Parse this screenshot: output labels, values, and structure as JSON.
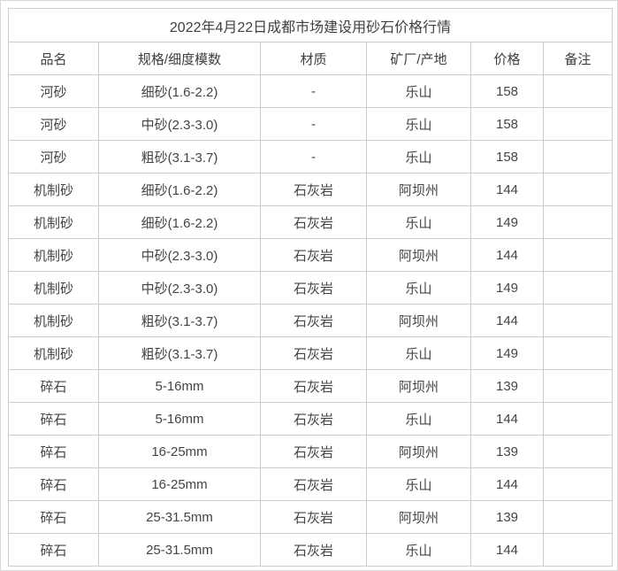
{
  "colors": {
    "text": "#404040",
    "border": "#cccccc",
    "background": "#ffffff"
  },
  "table": {
    "title": "2022年4月22日成都市场建设用砂石价格行情",
    "headers": [
      "品名",
      "规格/细度模数",
      "材质",
      "矿厂/产地",
      "价格",
      "备注"
    ],
    "rows": [
      [
        "河砂",
        "细砂(1.6-2.2)",
        "-",
        "乐山",
        "158",
        ""
      ],
      [
        "河砂",
        "中砂(2.3-3.0)",
        "-",
        "乐山",
        "158",
        ""
      ],
      [
        "河砂",
        "粗砂(3.1-3.7)",
        "-",
        "乐山",
        "158",
        ""
      ],
      [
        "机制砂",
        "细砂(1.6-2.2)",
        "石灰岩",
        "阿坝州",
        "144",
        ""
      ],
      [
        "机制砂",
        "细砂(1.6-2.2)",
        "石灰岩",
        "乐山",
        "149",
        ""
      ],
      [
        "机制砂",
        "中砂(2.3-3.0)",
        "石灰岩",
        "阿坝州",
        "144",
        ""
      ],
      [
        "机制砂",
        "中砂(2.3-3.0)",
        "石灰岩",
        "乐山",
        "149",
        ""
      ],
      [
        "机制砂",
        "粗砂(3.1-3.7)",
        "石灰岩",
        "阿坝州",
        "144",
        ""
      ],
      [
        "机制砂",
        "粗砂(3.1-3.7)",
        "石灰岩",
        "乐山",
        "149",
        ""
      ],
      [
        "碎石",
        "5-16mm",
        "石灰岩",
        "阿坝州",
        "139",
        ""
      ],
      [
        "碎石",
        "5-16mm",
        "石灰岩",
        "乐山",
        "144",
        ""
      ],
      [
        "碎石",
        "16-25mm",
        "石灰岩",
        "阿坝州",
        "139",
        ""
      ],
      [
        "碎石",
        "16-25mm",
        "石灰岩",
        "乐山",
        "144",
        ""
      ],
      [
        "碎石",
        "25-31.5mm",
        "石灰岩",
        "阿坝州",
        "139",
        ""
      ],
      [
        "碎石",
        "25-31.5mm",
        "石灰岩",
        "乐山",
        "144",
        ""
      ]
    ]
  }
}
